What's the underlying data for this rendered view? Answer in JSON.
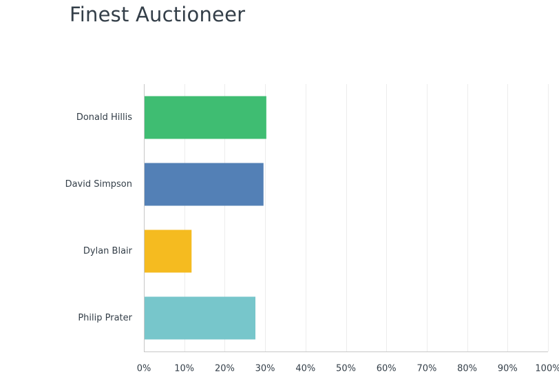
{
  "chart_data": {
    "type": "bar",
    "orientation": "horizontal",
    "title": "Finest Auctioneer",
    "categories": [
      "Donald Hillis",
      "David Simpson",
      "Dylan Blair",
      "Philip Prater"
    ],
    "values": [
      30.3,
      29.6,
      11.8,
      27.6
    ],
    "colors": [
      "#3fbd72",
      "#5380b6",
      "#f5bb20",
      "#77c6cb"
    ],
    "xlim": [
      0,
      100
    ],
    "x_ticks": [
      0,
      10,
      20,
      30,
      40,
      50,
      60,
      70,
      80,
      90,
      100
    ],
    "tick_labels": [
      "0%",
      "10%",
      "20%",
      "30%",
      "40%",
      "50%",
      "60%",
      "70%",
      "80%",
      "90%",
      "100%"
    ],
    "unit": "%",
    "grid": true,
    "legend": "none"
  }
}
